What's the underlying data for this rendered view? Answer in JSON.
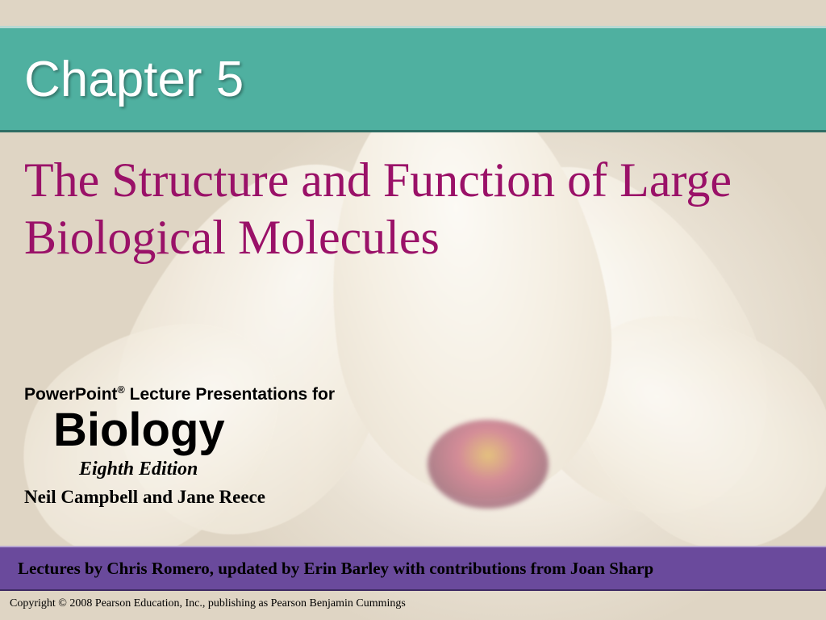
{
  "chapter": {
    "label": "Chapter 5",
    "band_color": "#4fb0a0",
    "title_color": "#ffffff",
    "title_fontsize": 62
  },
  "subtitle": {
    "text": "The Structure and Function of Large Biological Molecules",
    "color": "#9a1168",
    "fontsize": 60
  },
  "series": {
    "line1_prefix": "PowerPoint",
    "line1_reg": "®",
    "line1_suffix": " Lecture Presentations for",
    "book": "Biology",
    "edition": "Eighth Edition",
    "authors": "Neil Campbell and Jane Reece"
  },
  "footer": {
    "band_color": "#6a4a9c",
    "lectures_by": "Lectures by Chris Romero, updated by Erin Barley with contributions from Joan Sharp",
    "copyright": "Copyright © 2008 Pearson Education, Inc., publishing  as Pearson Benjamin Cummings"
  },
  "background": {
    "type": "decorative-flower",
    "base_color": "#f2ede2",
    "petal_color": "#f5efe3",
    "center_color": "#bb3e5e"
  }
}
